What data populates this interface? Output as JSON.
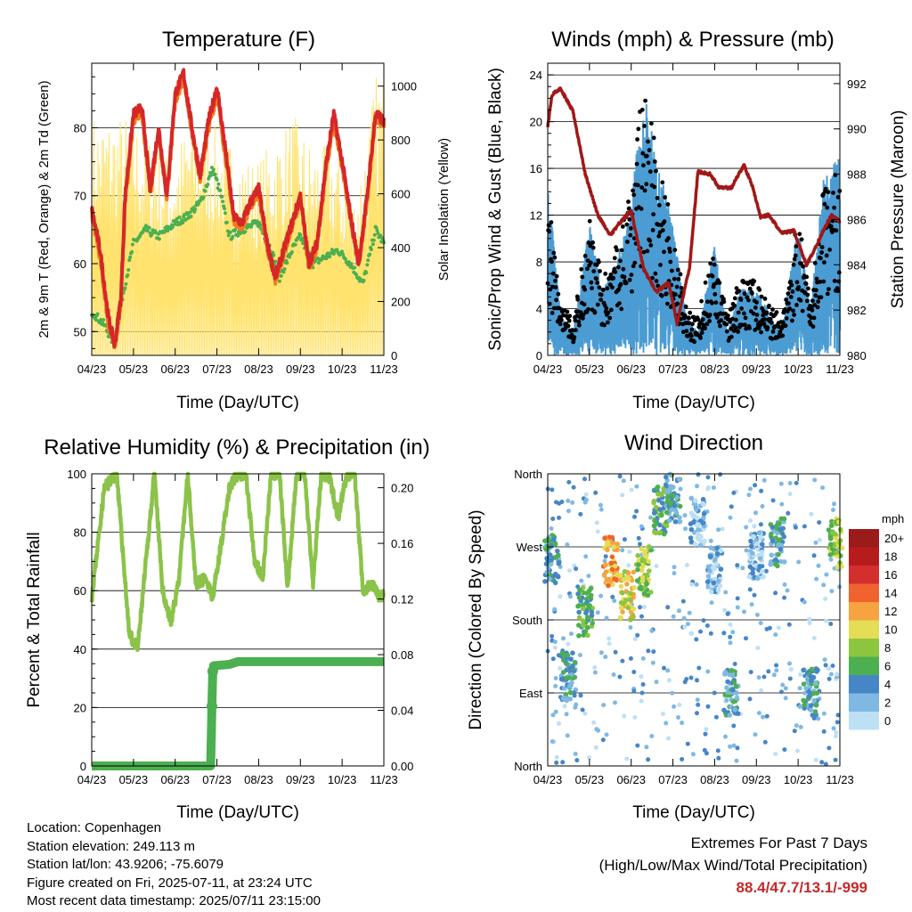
{
  "info": {
    "location": "Location: Copenhagen",
    "elevation": "Station elevation: 249.113 m",
    "latlon": "Station lat/lon: 43.9206; -75.6079",
    "created": "Figure created on Fri, 2025-07-11, at 23:24 UTC",
    "recent": "Most recent data timestamp: 2025/07/11 23:15:00"
  },
  "extremes": {
    "title": "Extremes For Past 7 Days",
    "subtitle": "(High/Low/Max Wind/Total Precipitation)",
    "values": "88.4/47.7/13.1/-999"
  },
  "chart_data": [
    {
      "type": "line",
      "title": "Temperature (F)",
      "xlabel": "Time (Day/UTC)",
      "ylabel": "2m & 9m T (Red, Orange) & 2m Td (Green)",
      "y2label": "Solar Insolation (Yellow)",
      "x_ticks": [
        "04/23",
        "05/23",
        "06/23",
        "07/23",
        "08/23",
        "09/23",
        "10/23",
        "11/23"
      ],
      "ylim": [
        46.5,
        89.5
      ],
      "yticks": [
        50,
        60,
        70,
        80
      ],
      "y2lim": [
        0,
        1085
      ],
      "y2ticks": [
        0,
        200,
        400,
        600,
        800,
        1000
      ],
      "grid": true,
      "colors": {
        "t2m": "#d62728",
        "t9m": "#ef7f1a",
        "td": "#4caf50",
        "solar": "#ffe36e"
      },
      "series": [
        {
          "name": "2m T",
          "color": "#d62728",
          "x": [
            0,
            0.2,
            0.4,
            0.55,
            0.7,
            0.8,
            1,
            1.2,
            1.4,
            1.6,
            1.8,
            2,
            2.2,
            2.4,
            2.6,
            2.8,
            3,
            3.2,
            3.4,
            3.6,
            3.8,
            4,
            4.2,
            4.4,
            4.6,
            4.8,
            5,
            5.2,
            5.4,
            5.6,
            5.8,
            6,
            6.2,
            6.4,
            6.6,
            6.8,
            7
          ],
          "y": [
            68,
            62,
            52,
            48,
            55,
            70,
            82,
            83,
            71,
            80,
            70,
            85,
            88,
            80,
            73,
            81,
            86,
            77,
            67,
            66,
            69,
            71,
            63,
            58,
            62,
            66,
            70,
            60,
            63,
            74,
            82,
            75,
            67,
            60,
            70,
            82,
            81
          ]
        },
        {
          "name": "9m T",
          "color": "#ef7f1a",
          "x": [
            0,
            0.2,
            0.4,
            0.55,
            0.7,
            0.8,
            1,
            1.2,
            1.4,
            1.6,
            1.8,
            2,
            2.2,
            2.4,
            2.6,
            2.8,
            3,
            3.2,
            3.4,
            3.6,
            3.8,
            4,
            4.2,
            4.4,
            4.6,
            4.8,
            5,
            5.2,
            5.4,
            5.6,
            5.8,
            6,
            6.2,
            6.4,
            6.6,
            6.8,
            7
          ],
          "y": [
            67.5,
            61,
            51,
            47.8,
            54,
            69,
            81,
            82.5,
            70.5,
            79,
            69.5,
            84,
            87.5,
            79.5,
            72.5,
            80,
            85,
            76,
            66.5,
            65.5,
            68.5,
            70.5,
            62.5,
            57.5,
            61.5,
            65.5,
            69.5,
            59.5,
            62.5,
            73,
            81,
            74.5,
            66.5,
            59.5,
            69.5,
            81.5,
            80.5
          ]
        },
        {
          "name": "2m Td",
          "color": "#4caf50",
          "x": [
            0,
            0.3,
            0.55,
            0.7,
            1,
            1.3,
            1.6,
            2,
            2.3,
            2.6,
            2.9,
            3.1,
            3.3,
            3.6,
            4,
            4.3,
            4.5,
            4.8,
            5,
            5.3,
            5.6,
            5.9,
            6.2,
            6.5,
            6.8,
            7
          ],
          "y": [
            53,
            51,
            48,
            54,
            63,
            65,
            64,
            66,
            67,
            69,
            74,
            70,
            64,
            65,
            66,
            62,
            58,
            62,
            64,
            60,
            61,
            62,
            60,
            57,
            65,
            63
          ]
        },
        {
          "name": "Solar Insolation",
          "color": "#ffe36e",
          "axis": "right",
          "x": [
            0.9,
            1.9,
            2.3,
            2.8,
            3.9,
            4.8,
            5.3,
            5.8,
            6.3,
            6.8
          ],
          "y": [
            900,
            740,
            880,
            870,
            720,
            900,
            780,
            780,
            600,
            1050
          ]
        }
      ]
    },
    {
      "type": "scatter",
      "title": "Winds (mph) & Pressure (mb)",
      "xlabel": "Time (Day/UTC)",
      "ylabel": "Sonic/Prop Wind & Gust (Blue, Black)",
      "y2label": "Station Pressure (Maroon)",
      "x_ticks": [
        "04/23",
        "05/23",
        "06/23",
        "07/23",
        "08/23",
        "09/23",
        "10/23",
        "11/23"
      ],
      "ylim": [
        0,
        25
      ],
      "yticks": [
        0,
        4,
        8,
        12,
        16,
        20,
        24
      ],
      "y2lim": [
        980,
        992.9
      ],
      "y2ticks": [
        980,
        982,
        984,
        986,
        988,
        990,
        992
      ],
      "grid": true,
      "colors": {
        "wind": "#4b9cd3",
        "gust": "#000000",
        "pressure": "#a01818"
      },
      "series": [
        {
          "name": "Sonic/Prop Wind",
          "color": "#4b9cd3",
          "x": [
            0,
            0.3,
            0.6,
            1,
            1.3,
            1.6,
            2,
            2.3,
            2.6,
            3,
            3.3,
            3.6,
            4,
            4.3,
            4.6,
            5,
            5.3,
            5.6,
            6,
            6.3,
            6.6,
            7
          ],
          "y": [
            8,
            2,
            1,
            6,
            3,
            4,
            7,
            12,
            9,
            6,
            2,
            1,
            5,
            1,
            3,
            3,
            2,
            1,
            6,
            2,
            8,
            9
          ]
        },
        {
          "name": "Gust",
          "color": "#000000",
          "x": [
            0,
            0.3,
            0.6,
            1,
            1.3,
            1.6,
            2,
            2.3,
            2.6,
            3,
            3.3,
            3.6,
            4,
            4.3,
            4.6,
            5,
            5.3,
            5.6,
            6,
            6.3,
            6.6,
            7
          ],
          "y": [
            13,
            4,
            3,
            11,
            6,
            8,
            14,
            22,
            16,
            10,
            4,
            3,
            9,
            3,
            6,
            6,
            4,
            3,
            11,
            4,
            13,
            16
          ]
        },
        {
          "name": "Station Pressure",
          "color": "#a01818",
          "axis": "right",
          "x": [
            0,
            0.1,
            0.3,
            0.6,
            0.9,
            1.2,
            1.5,
            1.7,
            2,
            2.3,
            2.6,
            2.9,
            3.1,
            3.4,
            3.6,
            3.9,
            4.1,
            4.4,
            4.7,
            4.9,
            5.1,
            5.3,
            5.6,
            5.9,
            6.2,
            6.4,
            6.6,
            6.8,
            7
          ],
          "y": [
            990.1,
            991.5,
            991.8,
            990.8,
            988,
            986.2,
            985.3,
            985.8,
            986.4,
            983.8,
            982.8,
            983.2,
            981.4,
            983.9,
            988.1,
            988,
            987.4,
            987.4,
            988.4,
            987.5,
            986.1,
            986.2,
            985.4,
            985.5,
            984,
            984.7,
            985.5,
            986.2,
            985.9
          ]
        }
      ]
    },
    {
      "type": "line",
      "title": "Relative Humidity (%) & Precipitation (in)",
      "xlabel": "Time (Day/UTC)",
      "ylabel": "Percent & Total Rainfall",
      "x_ticks": [
        "04/23",
        "05/23",
        "06/23",
        "07/23",
        "08/23",
        "09/23",
        "10/23",
        "11/23"
      ],
      "ylim": [
        0,
        100
      ],
      "yticks": [
        0,
        20,
        40,
        60,
        80,
        100
      ],
      "y2lim": [
        0,
        0.21
      ],
      "y2ticks": [
        0.0,
        0.04,
        0.08,
        0.12,
        0.16,
        0.2
      ],
      "grid": true,
      "colors": {
        "rh": "#8bc34a",
        "precip": "#4caf50"
      },
      "series": [
        {
          "name": "Relative Humidity",
          "color": "#8bc34a",
          "x": [
            0,
            0.3,
            0.6,
            0.9,
            1.1,
            1.3,
            1.5,
            1.7,
            1.9,
            2.1,
            2.3,
            2.5,
            2.7,
            2.9,
            3.1,
            3.3,
            3.5,
            3.7,
            3.9,
            4.1,
            4.3,
            4.5,
            4.7,
            4.9,
            5.1,
            5.3,
            5.5,
            5.7,
            5.9,
            6.1,
            6.3,
            6.5,
            6.7,
            6.9,
            7
          ],
          "y": [
            58,
            95,
            100,
            45,
            40,
            70,
            100,
            60,
            49,
            65,
            100,
            62,
            64,
            58,
            76,
            95,
            100,
            99,
            70,
            65,
            100,
            100,
            60,
            100,
            100,
            62,
            100,
            99,
            85,
            99,
            100,
            60,
            62,
            58,
            58
          ]
        },
        {
          "name": "Precipitation",
          "color": "#4caf50",
          "axis": "right",
          "x": [
            0,
            1,
            2,
            2.85,
            2.88,
            2.9,
            2.92,
            3.3,
            3.5,
            4,
            5,
            6,
            7
          ],
          "y": [
            0,
            0,
            0,
            0,
            0.043,
            0.068,
            0.072,
            0.073,
            0.075,
            0.075,
            0.075,
            0.075,
            0.075
          ]
        }
      ]
    },
    {
      "type": "scatter",
      "title": "Wind Direction",
      "xlabel": "Time (Day/UTC)",
      "ylabel": "Direction (Colored By Speed)",
      "x_ticks": [
        "04/23",
        "05/23",
        "06/23",
        "07/23",
        "08/23",
        "09/23",
        "10/23",
        "11/23"
      ],
      "yticks": [
        "North",
        "East",
        "South",
        "West",
        "North"
      ],
      "ylim": [
        0,
        360
      ],
      "grid": true,
      "legend": {
        "title": "mph",
        "labels": [
          "20+",
          "18",
          "16",
          "14",
          "12",
          "10",
          "8",
          "6",
          "4",
          "2",
          "0"
        ],
        "colors": [
          "#9b1b1b",
          "#b71c1c",
          "#d32f2f",
          "#f0632f",
          "#f7a440",
          "#e4dd55",
          "#8cc63f",
          "#4caf50",
          "#4686c6",
          "#7fb9e3",
          "#bde0f5"
        ],
        "placement": "right"
      },
      "clusters": [
        {
          "x_center": 0.1,
          "y_center": 255,
          "speed": 4
        },
        {
          "x_center": 0.5,
          "y_center": 110,
          "speed": 4
        },
        {
          "x_center": 0.9,
          "y_center": 190,
          "speed": 6
        },
        {
          "x_center": 1.5,
          "y_center": 252,
          "speed": 12
        },
        {
          "x_center": 1.9,
          "y_center": 210,
          "speed": 10
        },
        {
          "x_center": 2.3,
          "y_center": 240,
          "speed": 8
        },
        {
          "x_center": 2.7,
          "y_center": 315,
          "speed": 6
        },
        {
          "x_center": 3.0,
          "y_center": 330,
          "speed": 4
        },
        {
          "x_center": 3.6,
          "y_center": 300,
          "speed": 2
        },
        {
          "x_center": 4.0,
          "y_center": 240,
          "speed": 2
        },
        {
          "x_center": 4.4,
          "y_center": 90,
          "speed": 4
        },
        {
          "x_center": 5.0,
          "y_center": 260,
          "speed": 2
        },
        {
          "x_center": 5.5,
          "y_center": 275,
          "speed": 4
        },
        {
          "x_center": 6.3,
          "y_center": 90,
          "speed": 4
        },
        {
          "x_center": 6.9,
          "y_center": 275,
          "speed": 8
        }
      ]
    }
  ]
}
